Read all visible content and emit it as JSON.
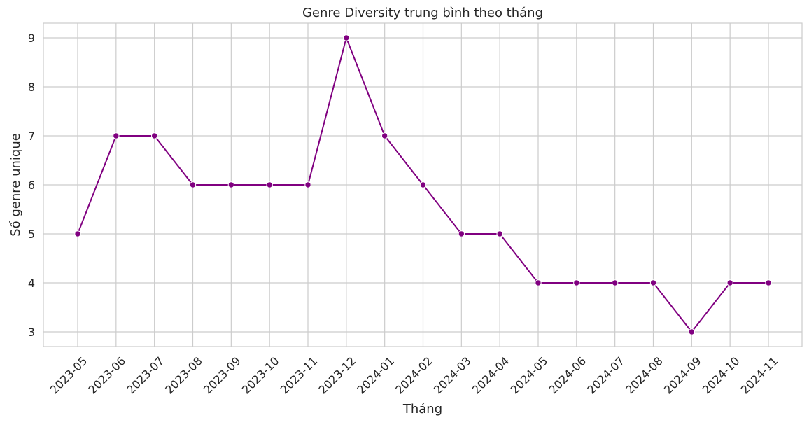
{
  "chart_data": {
    "type": "line",
    "title": "Genre Diversity trung bình theo tháng",
    "xlabel": "Tháng",
    "ylabel": "Số genre unique",
    "categories": [
      "2023-05",
      "2023-06",
      "2023-07",
      "2023-08",
      "2023-09",
      "2023-10",
      "2023-11",
      "2023-12",
      "2024-01",
      "2024-02",
      "2024-03",
      "2024-04",
      "2024-05",
      "2024-06",
      "2024-07",
      "2024-08",
      "2024-09",
      "2024-10",
      "2024-11"
    ],
    "series": [
      {
        "values": [
          5,
          7,
          7,
          6,
          6,
          6,
          6,
          9,
          7,
          6,
          5,
          5,
          4,
          4,
          4,
          4,
          3,
          4,
          4
        ],
        "color": "#800080"
      }
    ],
    "yticks": [
      3,
      4,
      5,
      6,
      7,
      8,
      9
    ],
    "ylim": [
      2.7,
      9.3
    ],
    "grid": true,
    "x_tick_rotation": -45,
    "marker": "circle"
  }
}
